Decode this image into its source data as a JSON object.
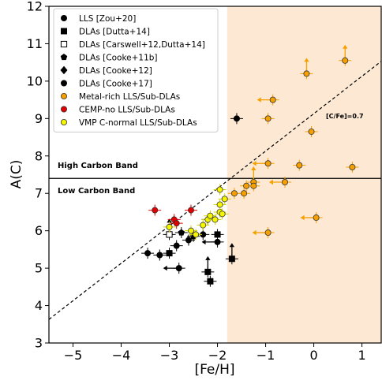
{
  "chart_data": {
    "type": "scatter",
    "xlabel": "[Fe/H]",
    "ylabel": "A(C)",
    "xlim": [
      -5.5,
      1.4
    ],
    "ylim": [
      3,
      12
    ],
    "x_ticks": [
      -5,
      -4,
      -3,
      -2,
      -1,
      0,
      1
    ],
    "x_tick_labels": [
      "−5",
      "−4",
      "−3",
      "−2",
      "−1",
      "0",
      "1"
    ],
    "y_ticks": [
      3,
      4,
      5,
      6,
      7,
      8,
      9,
      10,
      11,
      12
    ],
    "y_tick_labels": [
      "3",
      "4",
      "5",
      "6",
      "7",
      "8",
      "9",
      "10",
      "11",
      "12"
    ],
    "shaded_region": {
      "x_from": -1.8,
      "x_to": 1.4,
      "color": "#fde9d3"
    },
    "horizontal_line": {
      "y": 7.4,
      "color": "#000000"
    },
    "reference_line": {
      "label": "[C/Fe]=0.7",
      "offset": 0.7,
      "solar_carbon": 8.43,
      "style": "dashed"
    },
    "band_labels": {
      "high": "High Carbon Band",
      "low": "Low Carbon Band"
    },
    "legend_position": "top-left",
    "series": [
      {
        "name": "LLS [Zou+20]",
        "marker": "circle",
        "fill": "#000000",
        "stroke": "#000000",
        "points": [
          {
            "x": -1.6,
            "y": 9.0
          }
        ]
      },
      {
        "name": "DLAs [Dutta+14]",
        "marker": "square",
        "fill": "#000000",
        "stroke": "#000000",
        "points": [
          {
            "x": -3.0,
            "y": 5.4
          },
          {
            "x": -2.2,
            "y": 4.9,
            "limit": "up"
          },
          {
            "x": -2.15,
            "y": 4.65
          },
          {
            "x": -2.0,
            "y": 5.9
          },
          {
            "x": -1.7,
            "y": 5.25,
            "limit": "up"
          }
        ]
      },
      {
        "name": "DLAs [Carswell+12,Dutta+14]",
        "marker": "square-open",
        "fill": "#ffffff",
        "stroke": "#000000",
        "points": [
          {
            "x": -3.0,
            "y": 5.9,
            "limit": "up"
          }
        ]
      },
      {
        "name": "DLAs [Cooke+11b]",
        "marker": "pentagon",
        "fill": "#000000",
        "stroke": "#000000",
        "points": [
          {
            "x": -2.75,
            "y": 5.95
          },
          {
            "x": -2.5,
            "y": 5.85
          }
        ]
      },
      {
        "name": "DLAs [Cooke+12]",
        "marker": "diamond",
        "fill": "#000000",
        "stroke": "#000000",
        "points": [
          {
            "x": -2.2,
            "y": 6.3
          }
        ]
      },
      {
        "name": "DLAs [Cooke+17]",
        "marker": "circle",
        "fill": "#000000",
        "stroke": "#000000",
        "points": [
          {
            "x": -3.45,
            "y": 5.4
          },
          {
            "x": -3.2,
            "y": 5.35
          },
          {
            "x": -2.85,
            "y": 5.6
          },
          {
            "x": -2.8,
            "y": 5.0,
            "limit": "left"
          },
          {
            "x": -2.0,
            "y": 5.7,
            "limit": "left"
          },
          {
            "x": -2.3,
            "y": 5.9
          },
          {
            "x": -2.6,
            "y": 5.75
          }
        ]
      },
      {
        "name": "Metal-rich LLS/Sub-DLAs",
        "marker": "circle",
        "fill": "#f5a000",
        "stroke": "#333333",
        "points": [
          {
            "x": 0.65,
            "y": 10.55,
            "limit": "up"
          },
          {
            "x": -0.15,
            "y": 10.2,
            "limit": "up"
          },
          {
            "x": -0.85,
            "y": 9.5,
            "limit": "left"
          },
          {
            "x": -0.95,
            "y": 9.0
          },
          {
            "x": -0.05,
            "y": 8.65
          },
          {
            "x": -0.95,
            "y": 7.8,
            "limit": "left"
          },
          {
            "x": -0.3,
            "y": 7.75
          },
          {
            "x": 0.8,
            "y": 7.7
          },
          {
            "x": -1.25,
            "y": 7.3,
            "limit": "up"
          },
          {
            "x": -0.6,
            "y": 7.3,
            "limit": "left"
          },
          {
            "x": -1.25,
            "y": 7.2
          },
          {
            "x": -1.4,
            "y": 7.2
          },
          {
            "x": -1.45,
            "y": 7.0
          },
          {
            "x": -1.65,
            "y": 7.0
          },
          {
            "x": 0.05,
            "y": 6.35,
            "limit": "left"
          },
          {
            "x": -0.95,
            "y": 5.95,
            "limit": "left"
          }
        ]
      },
      {
        "name": "CEMP-no LLS/Sub-DLAs",
        "marker": "circle",
        "fill": "#e00000",
        "stroke": "#333333",
        "points": [
          {
            "x": -3.3,
            "y": 6.55
          },
          {
            "x": -2.9,
            "y": 6.3
          },
          {
            "x": -2.85,
            "y": 6.2
          },
          {
            "x": -2.55,
            "y": 6.55
          }
        ]
      },
      {
        "name": "VMP C-normal LLS/Sub-DLAs",
        "marker": "circle",
        "fill": "#f5f500",
        "stroke": "#333333",
        "points": [
          {
            "x": -3.0,
            "y": 6.1
          },
          {
            "x": -2.45,
            "y": 5.9
          },
          {
            "x": -2.55,
            "y": 6.0
          },
          {
            "x": -2.3,
            "y": 6.15
          },
          {
            "x": -2.2,
            "y": 6.3
          },
          {
            "x": -2.15,
            "y": 6.4
          },
          {
            "x": -2.05,
            "y": 6.3
          },
          {
            "x": -1.95,
            "y": 6.5
          },
          {
            "x": -1.9,
            "y": 6.45
          },
          {
            "x": -1.95,
            "y": 6.7
          },
          {
            "x": -1.85,
            "y": 6.85
          },
          {
            "x": -1.95,
            "y": 7.1
          }
        ]
      }
    ]
  }
}
